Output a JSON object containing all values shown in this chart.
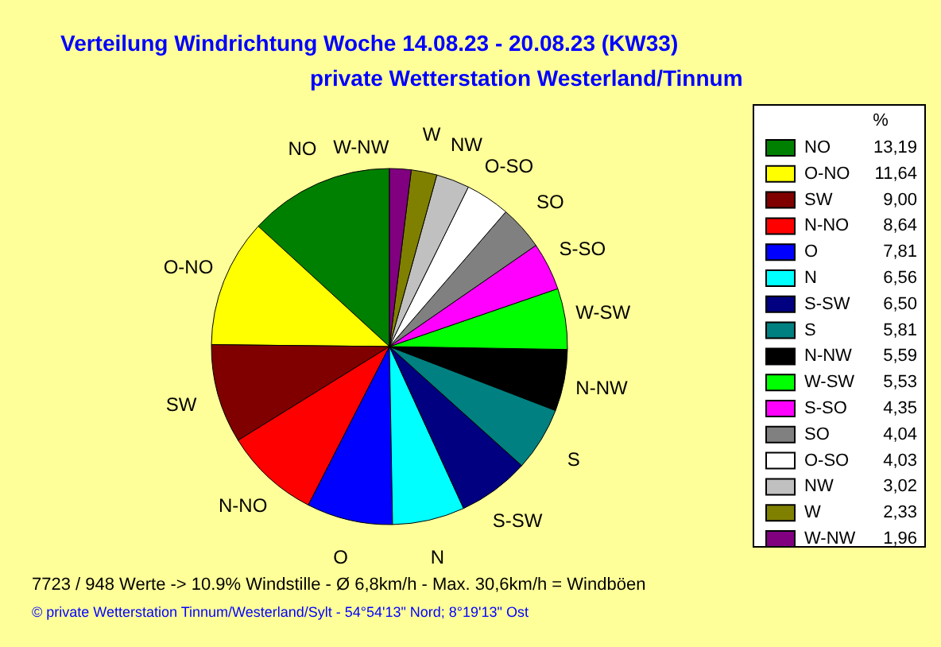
{
  "chart_data": {
    "type": "pie",
    "title": "Verteilung Windrichtung   Woche 14.08.23 - 20.08.23 (KW33)",
    "subtitle": "private Wetterstation Westerland/Tinnum",
    "legend_title": "%",
    "categories": [
      "NO",
      "O-NO",
      "SW",
      "N-NO",
      "O",
      "N",
      "S-SW",
      "S",
      "N-NW",
      "W-SW",
      "S-SO",
      "SO",
      "O-SO",
      "NW",
      "W",
      "W-NW"
    ],
    "values": [
      13.19,
      11.64,
      9.0,
      8.64,
      7.81,
      6.56,
      6.5,
      5.81,
      5.59,
      5.53,
      4.35,
      4.04,
      4.03,
      3.02,
      2.33,
      1.96
    ],
    "value_labels": [
      "13,19",
      "11,64",
      "9,00",
      "8,64",
      "7,81",
      "6,56",
      "6,50",
      "5,81",
      "5,59",
      "5,53",
      "4,35",
      "4,04",
      "4,03",
      "3,02",
      "2,33",
      "1,96"
    ],
    "colors": [
      "#008000",
      "#ffff00",
      "#800000",
      "#ff0000",
      "#0000ff",
      "#00ffff",
      "#000080",
      "#008080",
      "#000000",
      "#00ff00",
      "#ff00ff",
      "#808080",
      "#ffffff",
      "#c0c0c0",
      "#808000",
      "#800080"
    ],
    "legend": "right",
    "annotations": [
      "7723 / 948 Werte  -> 10.9% Windstille   -   Ø 6,8km/h  -  Max. 30,6km/h = Windböen",
      "© private Wetterstation Tinnum/Westerland/Sylt   -   54°54'13\" Nord; 8°19'13\" Ost"
    ]
  }
}
